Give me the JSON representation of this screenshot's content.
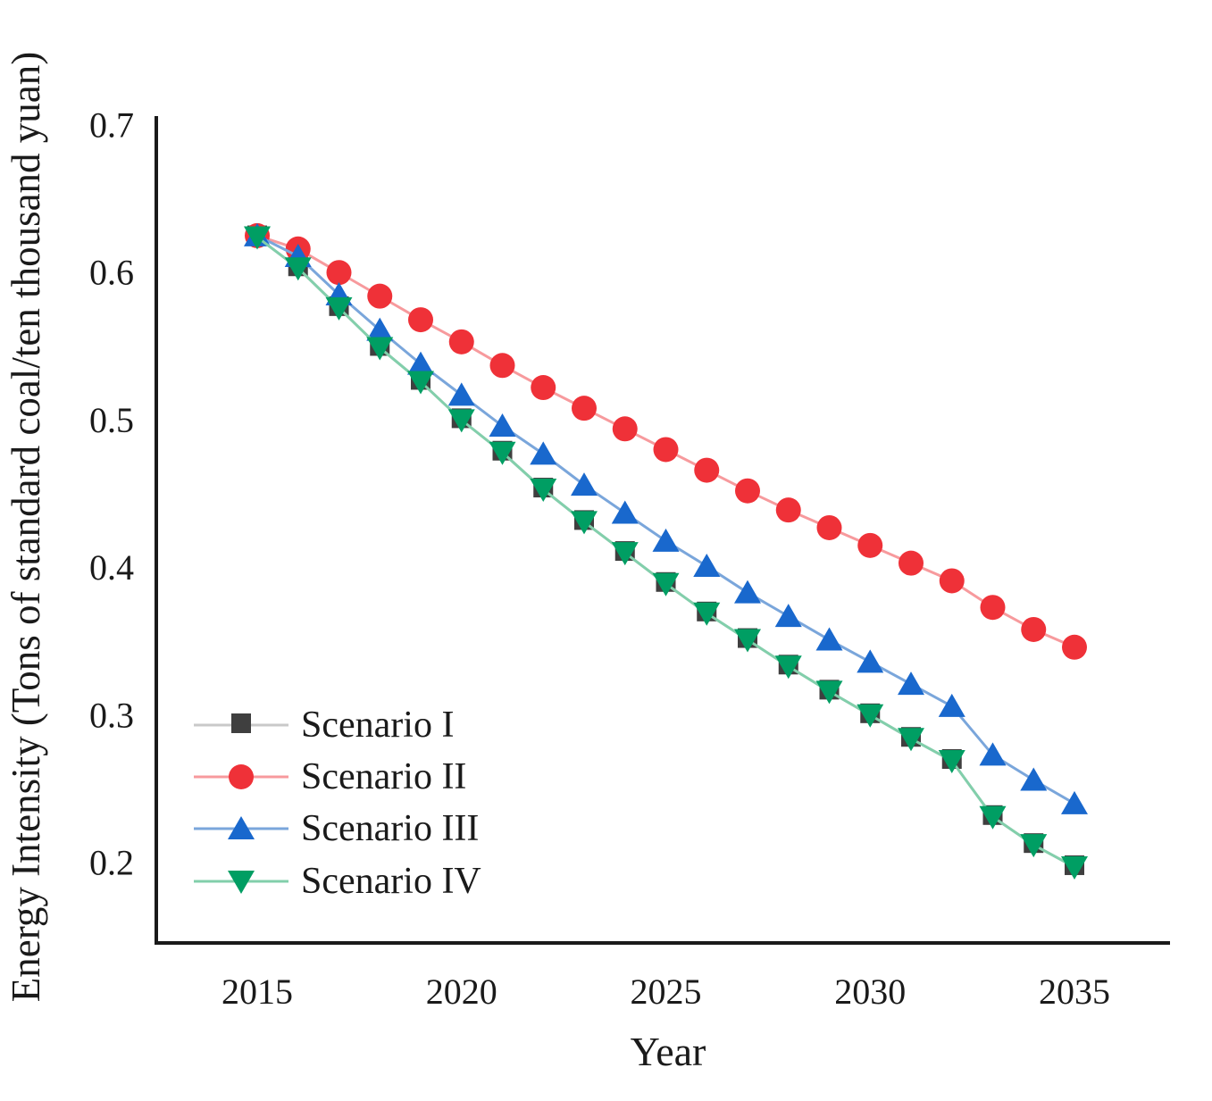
{
  "figure": {
    "background": "#ffffff",
    "axis_color": "#1a1a1a"
  },
  "chart_data": {
    "type": "line",
    "title": "",
    "xlabel": "Year",
    "ylabel": "Energy Intensity (Tons of standard coal/ten thousand yuan)",
    "x": [
      2015,
      2016,
      2017,
      2018,
      2019,
      2020,
      2021,
      2022,
      2023,
      2024,
      2025,
      2026,
      2027,
      2028,
      2029,
      2030,
      2031,
      2032,
      2033,
      2034,
      2035
    ],
    "xticks": [
      2015,
      2020,
      2025,
      2030,
      2035
    ],
    "yticks": [
      0.7,
      0.6,
      0.5,
      0.4,
      0.3,
      0.2
    ],
    "xlim": [
      2012.5,
      2037.3
    ],
    "ylim": [
      0.145,
      0.7
    ],
    "grid": false,
    "legend_position": "inside-lower-left",
    "series": [
      {
        "name": "Scenario I",
        "marker": "square",
        "marker_color": "#3f3f3f",
        "line_color": "#c9c9c9",
        "values": [
          0.624,
          0.603,
          0.576,
          0.549,
          0.526,
          0.5,
          0.478,
          0.453,
          0.431,
          0.41,
          0.389,
          0.369,
          0.351,
          0.333,
          0.316,
          0.3,
          0.284,
          0.269,
          0.231,
          0.212,
          0.197
        ]
      },
      {
        "name": "Scenario II",
        "marker": "circle",
        "marker_color": "#ef3138",
        "line_color": "#f79a9d",
        "values": [
          0.625,
          0.616,
          0.6,
          0.584,
          0.568,
          0.553,
          0.537,
          0.522,
          0.508,
          0.494,
          0.48,
          0.466,
          0.452,
          0.439,
          0.427,
          0.415,
          0.403,
          0.391,
          0.373,
          0.358,
          0.346
        ]
      },
      {
        "name": "Scenario III",
        "marker": "triangle-up",
        "marker_color": "#1968cd",
        "line_color": "#7aa6db",
        "values": [
          0.625,
          0.611,
          0.585,
          0.561,
          0.538,
          0.517,
          0.496,
          0.477,
          0.456,
          0.437,
          0.418,
          0.401,
          0.383,
          0.367,
          0.351,
          0.336,
          0.321,
          0.306,
          0.273,
          0.256,
          0.24
        ]
      },
      {
        "name": "Scenario IV",
        "marker": "triangle-down",
        "marker_color": "#009e63",
        "line_color": "#82cfab",
        "values": [
          0.624,
          0.603,
          0.576,
          0.549,
          0.526,
          0.5,
          0.478,
          0.453,
          0.431,
          0.41,
          0.389,
          0.369,
          0.351,
          0.333,
          0.316,
          0.3,
          0.284,
          0.269,
          0.231,
          0.212,
          0.197
        ]
      }
    ]
  }
}
